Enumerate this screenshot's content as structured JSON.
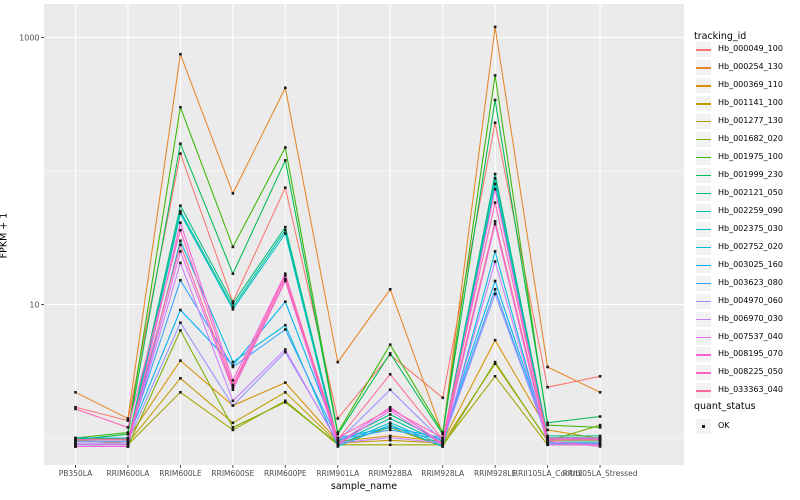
{
  "chart_data": {
    "type": "line",
    "title": "",
    "xlabel": "sample_name",
    "ylabel": "FPKM + 1",
    "y_scale": "log10",
    "ylim": [
      1,
      1300
    ],
    "y_ticks": [
      {
        "value": 1000,
        "label": "1000"
      },
      {
        "value": 10,
        "label": "10"
      }
    ],
    "y_minor_gridlines": [
      1,
      100
    ],
    "y_major_gridlines": [
      10,
      1000
    ],
    "grid": "on",
    "legend_position": "right",
    "legend_title": "tracking_id",
    "quant_legend": {
      "title": "quant_status",
      "entries": [
        {
          "label": "OK",
          "marker": "black-square"
        }
      ]
    },
    "panel_background": "#EBEBEB",
    "gridline_color": "#FFFFFF",
    "tick_text_color": "#4D4D4D",
    "point_color": "#1a1a1a",
    "categories": [
      "PB350LA",
      "RRIM600LA",
      "RRIM600LE",
      "RRIM600SE",
      "RRIM600PE",
      "RRIM901LA",
      "RRIM928BA",
      "RRIM928LA",
      "RRIM928LE",
      "RRII105LA_Control",
      "RRII105LA_Stressed"
    ],
    "series": [
      {
        "name": "Hb_000049_100",
        "color": "#F8766D",
        "values": [
          1.7,
          1.35,
          135,
          10.5,
          75,
          1.4,
          4.2,
          2.0,
          230,
          2.4,
          2.9
        ]
      },
      {
        "name": "Hb_000254_130",
        "color": "#E88526",
        "values": [
          2.2,
          1.4,
          750,
          68,
          420,
          3.7,
          13,
          1.1,
          1200,
          3.4,
          2.2
        ]
      },
      {
        "name": "Hb_000369_110",
        "color": "#D89000",
        "values": [
          1.05,
          1.05,
          3.8,
          1.75,
          2.6,
          1.0,
          1.1,
          1.0,
          5.4,
          1.15,
          1.05
        ]
      },
      {
        "name": "Hb_001141_100",
        "color": "#C09B00",
        "values": [
          1.05,
          1.0,
          2.8,
          1.3,
          2.2,
          1.0,
          1.05,
          1.0,
          3.6,
          1.05,
          1.05
        ]
      },
      {
        "name": "Hb_001277_130",
        "color": "#A3A500",
        "values": [
          1.0,
          1.0,
          2.2,
          1.15,
          1.9,
          1.0,
          1.0,
          1.0,
          2.9,
          1.0,
          1.0
        ]
      },
      {
        "name": "Hb_001682_020",
        "color": "#7CAE00",
        "values": [
          1.0,
          1.0,
          6.4,
          1.2,
          1.85,
          1.05,
          1.2,
          1.0,
          3.7,
          1.1,
          1.25
        ]
      },
      {
        "name": "Hb_001975_100",
        "color": "#39B600",
        "values": [
          1.0,
          1.1,
          300,
          27,
          150,
          1.1,
          5.0,
          1.1,
          520,
          1.25,
          1.2
        ]
      },
      {
        "name": "Hb_001999_230",
        "color": "#00BB4E",
        "values": [
          1.0,
          1.1,
          160,
          17,
          120,
          1.1,
          4.3,
          1.1,
          340,
          1.3,
          1.45
        ]
      },
      {
        "name": "Hb_002121_050",
        "color": "#00BF7D",
        "values": [
          1.0,
          1.0,
          55,
          10.2,
          38,
          1.0,
          1.5,
          1.0,
          95,
          1.1,
          1.1
        ]
      },
      {
        "name": "Hb_002259_090",
        "color": "#00C1A3",
        "values": [
          1.0,
          1.0,
          50,
          9.6,
          36,
          1.0,
          1.4,
          1.0,
          88,
          1.1,
          1.1
        ]
      },
      {
        "name": "Hb_002375_030",
        "color": "#00BFC4",
        "values": [
          1.0,
          1.0,
          48,
          9.2,
          34,
          1.0,
          1.3,
          1.0,
          80,
          1.05,
          1.05
        ]
      },
      {
        "name": "Hb_002752_020",
        "color": "#00BAE0",
        "values": [
          1.0,
          1.0,
          30,
          3.7,
          7.0,
          1.0,
          1.25,
          1.0,
          25,
          1.05,
          1.05
        ]
      },
      {
        "name": "Hb_003025_160",
        "color": "#00B0F6",
        "values": [
          1.0,
          1.0,
          9.1,
          3.5,
          10.5,
          1.0,
          1.2,
          1.0,
          15,
          1.0,
          1.0
        ]
      },
      {
        "name": "Hb_003623_080",
        "color": "#35A2FF",
        "values": [
          1.0,
          1.0,
          15.2,
          3.4,
          6.5,
          1.0,
          1.15,
          1.0,
          13,
          1.0,
          1.0
        ]
      },
      {
        "name": "Hb_004970_060",
        "color": "#9590FF",
        "values": [
          1.0,
          1.0,
          7.3,
          1.75,
          4.4,
          1.0,
          2.3,
          1.0,
          12,
          1.05,
          1.05
        ]
      },
      {
        "name": "Hb_006970_030",
        "color": "#C77CFF",
        "values": [
          1.0,
          1.0,
          20.5,
          1.9,
          4.6,
          1.0,
          1.1,
          1.0,
          21,
          1.0,
          1.0
        ]
      },
      {
        "name": "Hb_007537_040",
        "color": "#E76BF3",
        "values": [
          1.0,
          1.0,
          25,
          2.3,
          15,
          1.0,
          1.6,
          1.0,
          40,
          1.0,
          1.0
        ]
      },
      {
        "name": "Hb_008195_070",
        "color": "#FA62DB",
        "values": [
          1.0,
          1.0,
          41,
          2.7,
          17,
          1.05,
          1.7,
          1.05,
          73,
          1.1,
          1.0
        ]
      },
      {
        "name": "Hb_008225_050",
        "color": "#FF62BC",
        "values": [
          1.65,
          1.2,
          36,
          2.5,
          16.5,
          1.0,
          1.65,
          1.0,
          58,
          1.0,
          1.0
        ]
      },
      {
        "name": "Hb_033363_040",
        "color": "#FF6A98",
        "values": [
          1.0,
          1.0,
          28,
          2.4,
          15.5,
          1.0,
          3.0,
          1.0,
          42,
          1.0,
          1.0
        ]
      }
    ]
  }
}
